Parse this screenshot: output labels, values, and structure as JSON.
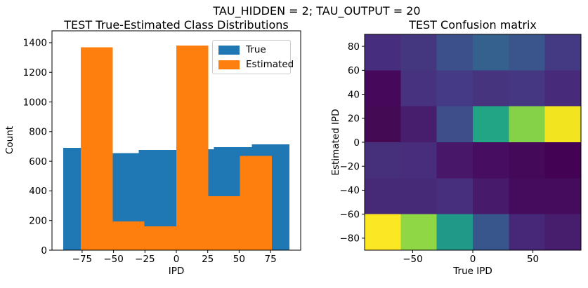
{
  "figure": {
    "suptitle": "TAU_HIDDEN = 2; TAU_OUTPUT = 20",
    "background_color": "#ffffff"
  },
  "chart_data": [
    {
      "type": "bar",
      "subtype": "histogram",
      "title": "TEST True-Estimated Class Distributions",
      "xlabel": "IPD",
      "ylabel": "Count",
      "xlim": [
        -99,
        99
      ],
      "ylim": [
        0,
        1480
      ],
      "xticks": [
        -75,
        -50,
        -25,
        0,
        25,
        50,
        75
      ],
      "yticks": [
        0,
        200,
        400,
        600,
        800,
        1000,
        1200,
        1400
      ],
      "grid": false,
      "legend": {
        "position": "upper right",
        "entries": [
          {
            "label": "True",
            "color": "#1f77b4"
          },
          {
            "label": "Estimated",
            "color": "#ff7f0e"
          }
        ]
      },
      "series": [
        {
          "name": "True",
          "color": "#1f77b4",
          "bin_edges": [
            -90,
            -60,
            -30,
            0,
            30,
            60,
            90
          ],
          "counts": [
            690,
            655,
            675,
            680,
            695,
            715
          ]
        },
        {
          "name": "Estimated",
          "color": "#ff7f0e",
          "bin_edges": [
            -76,
            -50.67,
            -25.33,
            0,
            25.33,
            50.67,
            76
          ],
          "counts": [
            1370,
            195,
            160,
            1380,
            365,
            635
          ]
        }
      ]
    },
    {
      "type": "heatmap",
      "title": "TEST Confusion matrix",
      "xlabel": "True IPD",
      "ylabel": "Estimated IPD",
      "xlim": [
        -90,
        90
      ],
      "ylim": [
        -90,
        90
      ],
      "xticks": [
        -50,
        0,
        50
      ],
      "yticks": [
        80,
        60,
        40,
        20,
        0,
        -20,
        -40,
        -60,
        -80
      ],
      "colormap": "viridis",
      "rows_top_to_bottom_estimated_ipd": [
        "60 to 90",
        "30 to 60",
        "0 to 30",
        "-30 to 0",
        "-60 to -30",
        "-90 to -60"
      ],
      "cols_left_to_right_true_ipd": [
        "-90 to -60",
        "-60 to -30",
        "-30 to 0",
        "0 to 30",
        "30 to 60",
        "60 to 90"
      ],
      "cell_colors": [
        [
          "#472d7e",
          "#45377f",
          "#3c508b",
          "#35618e",
          "#3a548c",
          "#443a83"
        ],
        [
          "#45085b",
          "#46327e",
          "#453a85",
          "#46347f",
          "#453781",
          "#472a7a"
        ],
        [
          "#440a54",
          "#471d6e",
          "#3d4e8a",
          "#21a585",
          "#85d249",
          "#f2e51f"
        ],
        [
          "#46307c",
          "#472d7b",
          "#481769",
          "#470d60",
          "#45095a",
          "#430253"
        ],
        [
          "#462a78",
          "#462a78",
          "#472f7d",
          "#481a6c",
          "#450b5c",
          "#450b5c"
        ],
        [
          "#fce724",
          "#8fd744",
          "#209988",
          "#39568c",
          "#472878",
          "#471d6e"
        ]
      ],
      "values_norm_estimated": [
        [
          0.1,
          0.14,
          0.25,
          0.3,
          0.26,
          0.15
        ],
        [
          0.03,
          0.11,
          0.14,
          0.12,
          0.13,
          0.09
        ],
        [
          0.01,
          0.06,
          0.24,
          0.62,
          0.84,
          0.97
        ],
        [
          0.11,
          0.1,
          0.05,
          0.03,
          0.02,
          0.0
        ],
        [
          0.09,
          0.09,
          0.11,
          0.06,
          0.03,
          0.03
        ],
        [
          1.0,
          0.85,
          0.57,
          0.26,
          0.1,
          0.06
        ]
      ]
    }
  ]
}
